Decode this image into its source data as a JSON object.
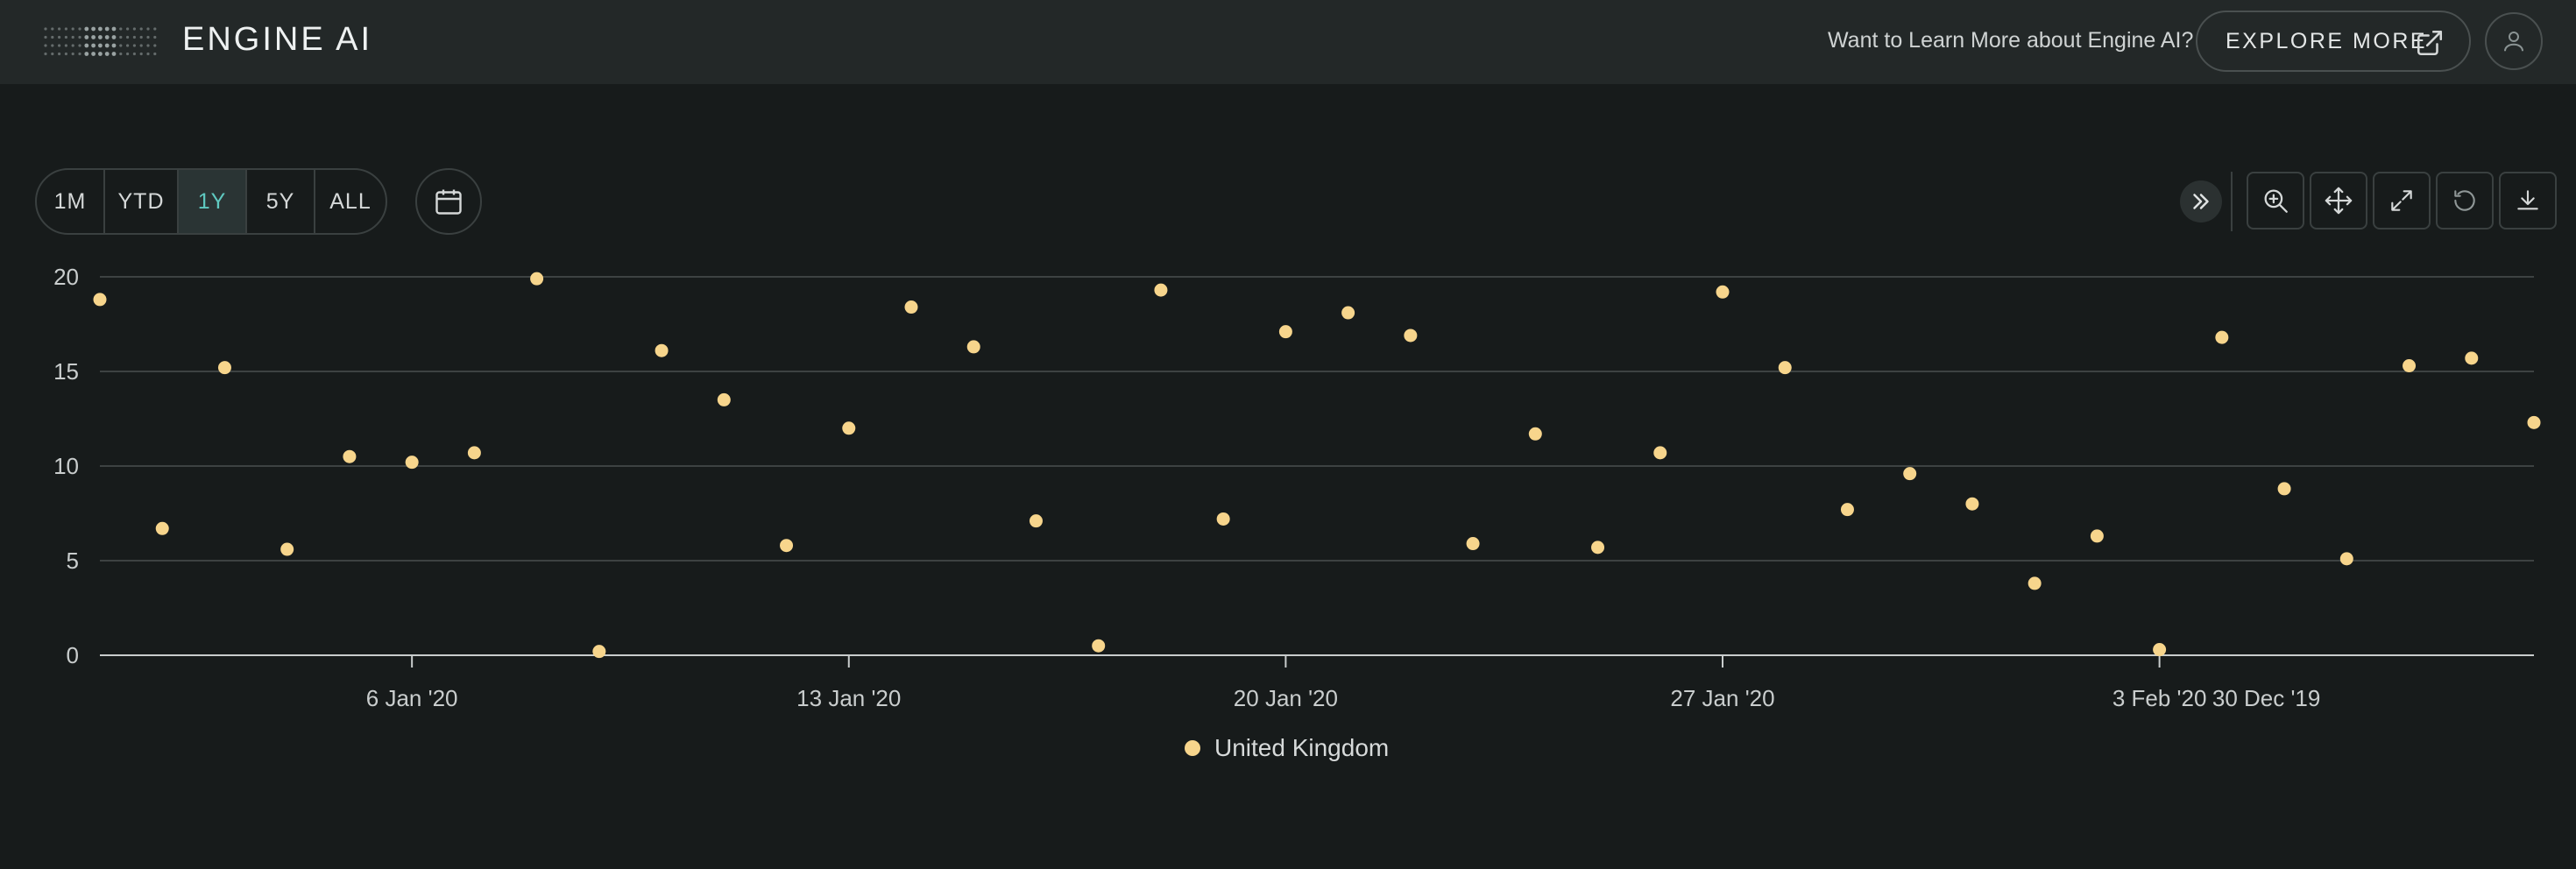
{
  "header": {
    "logo_text": "ENGINE AI",
    "cta_text": "Want to Learn More about Engine AI?",
    "explore_label": "EXPLORE MORE"
  },
  "range": {
    "buttons": [
      "1M",
      "YTD",
      "1Y",
      "5Y",
      "ALL"
    ],
    "active": "1Y"
  },
  "colors": {
    "accent": "#5fc9c0",
    "point": "#f7d58c",
    "background": "#171b1b",
    "header": "#232828"
  },
  "toolbar": {
    "icons": [
      "chevrons-right-icon",
      "zoom-in-icon",
      "pan-icon",
      "fullscreen-icon",
      "reset-icon",
      "download-icon"
    ]
  },
  "chart_data": {
    "type": "scatter",
    "title": "",
    "xlabel": "",
    "ylabel": "",
    "ylim": [
      0,
      20
    ],
    "yticks": [
      0,
      5,
      10,
      15,
      20
    ],
    "grid": true,
    "legend_position": "bottom",
    "xtick_labels": [
      "6 Jan '20",
      "13 Jan '20",
      "20 Jan '20",
      "27 Jan '20",
      "3 Feb '20",
      "30 Dec '19"
    ],
    "series": [
      {
        "name": "United Kingdom",
        "x": [
          "2020-01-01",
          "2020-01-02",
          "2020-01-03",
          "2020-01-04",
          "2020-01-05",
          "2020-01-06",
          "2020-01-07",
          "2020-01-08",
          "2020-01-09",
          "2020-01-10",
          "2020-01-11",
          "2020-01-12",
          "2020-01-13",
          "2020-01-14",
          "2020-01-15",
          "2020-01-16",
          "2020-01-17",
          "2020-01-18",
          "2020-01-19",
          "2020-01-20",
          "2020-01-21",
          "2020-01-22",
          "2020-01-23",
          "2020-01-24",
          "2020-01-25",
          "2020-01-26",
          "2020-01-27",
          "2020-01-28",
          "2020-01-29",
          "2020-01-30",
          "2020-01-31",
          "2020-02-01",
          "2020-02-02",
          "2020-02-03",
          "2020-02-04",
          "2020-02-05",
          "2020-02-06",
          "2020-02-07",
          "2020-02-08",
          "2020-02-09"
        ],
        "values": [
          18.8,
          6.7,
          15.2,
          5.6,
          10.5,
          10.2,
          10.7,
          19.9,
          0.2,
          16.1,
          13.5,
          5.8,
          12.0,
          18.4,
          16.3,
          7.1,
          0.5,
          19.3,
          7.2,
          17.1,
          18.1,
          16.9,
          5.9,
          11.7,
          5.7,
          10.7,
          19.2,
          15.2,
          7.7,
          9.6,
          8.0,
          3.8,
          6.3,
          0.3,
          16.8,
          8.8,
          5.1,
          15.3,
          15.7,
          12.3
        ]
      }
    ]
  }
}
